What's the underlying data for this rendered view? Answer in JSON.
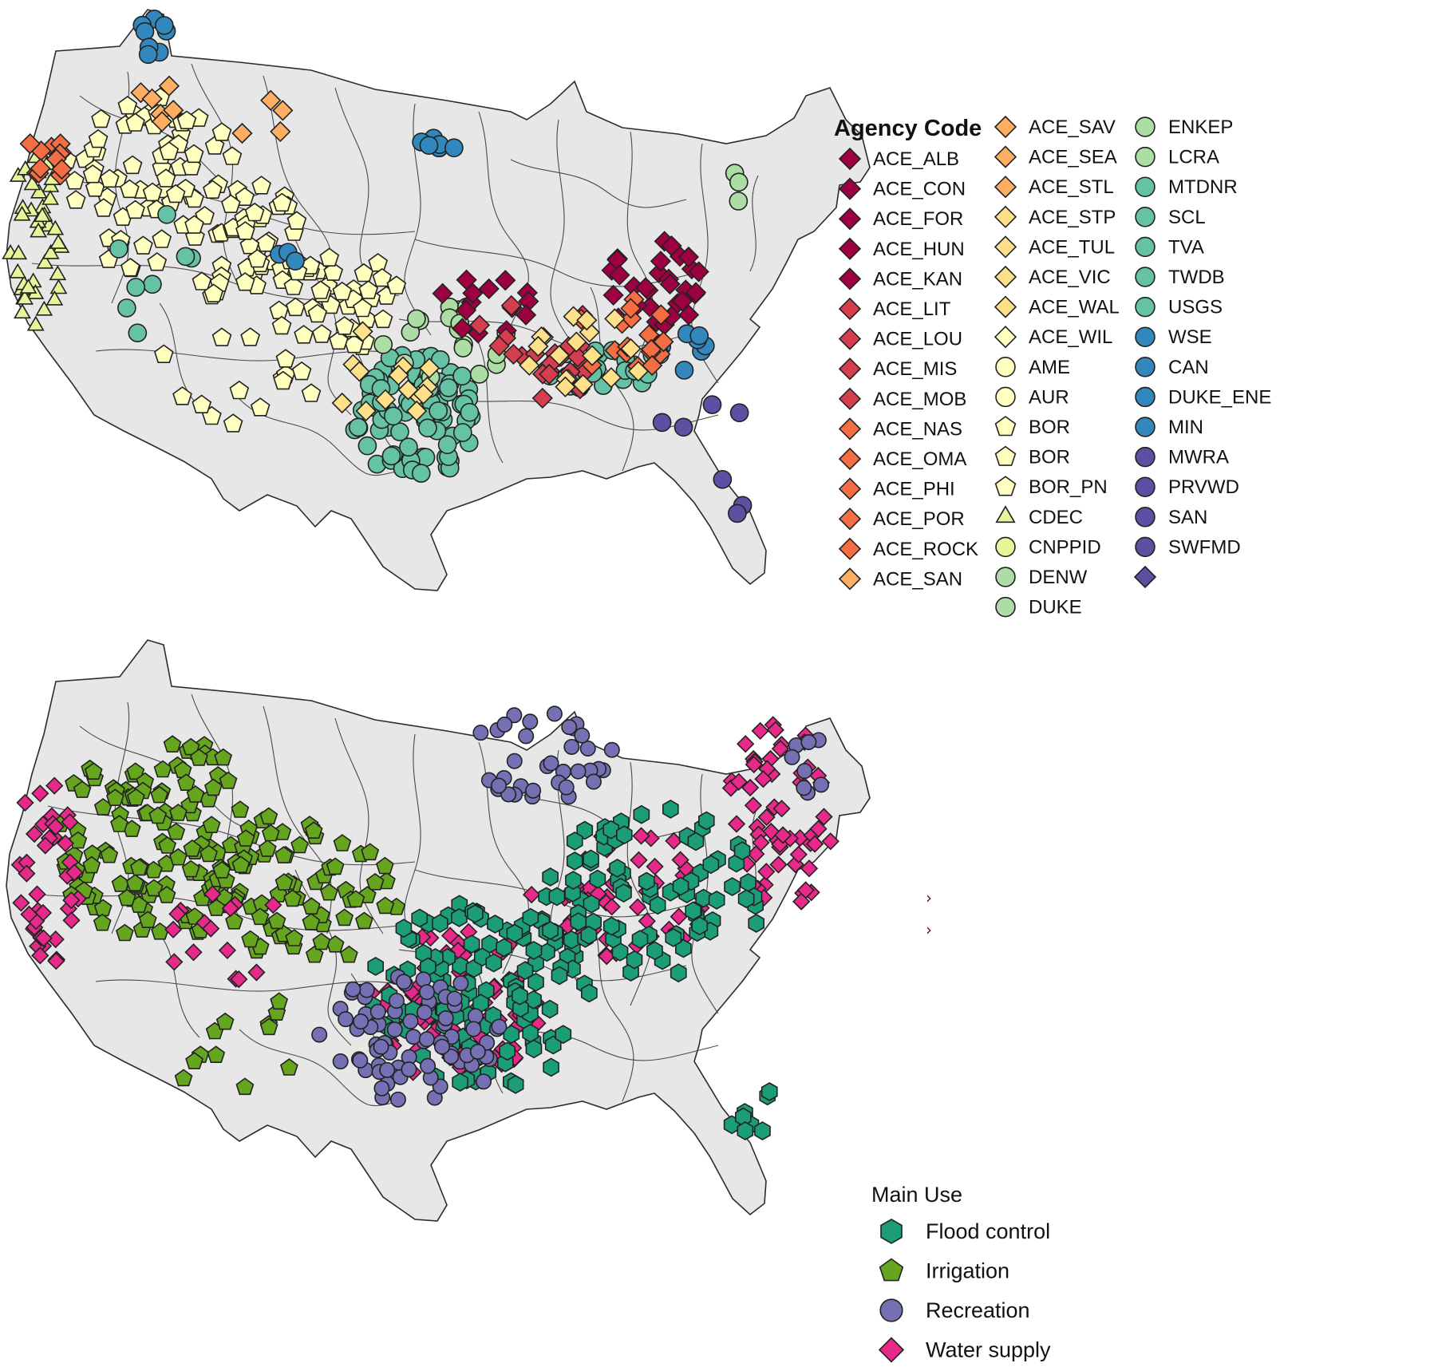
{
  "agency_legend": {
    "title": "Agency Code",
    "columns": [
      [
        {
          "label": "ACE_ALB",
          "shape": "diamond",
          "color": "#9e0142"
        },
        {
          "label": "ACE_CON",
          "shape": "diamond",
          "color": "#9e0142"
        },
        {
          "label": "ACE_FOR",
          "shape": "diamond",
          "color": "#9e0142"
        },
        {
          "label": "ACE_HUN",
          "shape": "diamond",
          "color": "#9e0142"
        },
        {
          "label": "ACE_KAN",
          "shape": "diamond",
          "color": "#9e0142"
        },
        {
          "label": "ACE_LIT",
          "shape": "diamond",
          "color": "#d53e4f"
        },
        {
          "label": "ACE_LOU",
          "shape": "diamond",
          "color": "#d53e4f"
        },
        {
          "label": "ACE_MIS",
          "shape": "diamond",
          "color": "#d53e4f"
        },
        {
          "label": "ACE_MOB",
          "shape": "diamond",
          "color": "#d53e4f"
        },
        {
          "label": "ACE_NAS",
          "shape": "diamond",
          "color": "#f46d43"
        },
        {
          "label": "ACE_OMA",
          "shape": "diamond",
          "color": "#f46d43"
        },
        {
          "label": "ACE_PHI",
          "shape": "diamond",
          "color": "#f46d43"
        },
        {
          "label": "ACE_POR",
          "shape": "diamond",
          "color": "#f46d43"
        },
        {
          "label": "ACE_ROCK",
          "shape": "diamond",
          "color": "#f46d43"
        },
        {
          "label": "ACE_SAN",
          "shape": "diamond",
          "color": "#fdae61"
        }
      ],
      [
        {
          "label": "ACE_SAV",
          "shape": "diamond",
          "color": "#fdae61"
        },
        {
          "label": "ACE_SEA",
          "shape": "diamond",
          "color": "#fdae61"
        },
        {
          "label": "ACE_STL",
          "shape": "diamond",
          "color": "#fdae61"
        },
        {
          "label": "ACE_STP",
          "shape": "diamond",
          "color": "#fee08b"
        },
        {
          "label": "ACE_TUL",
          "shape": "diamond",
          "color": "#fee08b"
        },
        {
          "label": "ACE_VIC",
          "shape": "diamond",
          "color": "#fee08b"
        },
        {
          "label": "ACE_WAL",
          "shape": "diamond",
          "color": "#fee08b"
        },
        {
          "label": "ACE_WIL",
          "shape": "diamond",
          "color": "#ffffbf"
        },
        {
          "label": "AME",
          "shape": "circle",
          "color": "#ffffbf"
        },
        {
          "label": "AUR",
          "shape": "circle",
          "color": "#ffffbf"
        },
        {
          "label": "BOR",
          "shape": "pentagon",
          "color": "#ffffbf"
        },
        {
          "label": "BOR",
          "shape": "pentagon",
          "color": "#ffffbf"
        },
        {
          "label": "BOR_PN",
          "shape": "pentagon",
          "color": "#ffffbf"
        },
        {
          "label": "CDEC",
          "shape": "triangle",
          "color": "#e6f598"
        },
        {
          "label": "CNPPID",
          "shape": "circle",
          "color": "#e6f598"
        },
        {
          "label": "DENW",
          "shape": "circle",
          "color": "#abdda4"
        },
        {
          "label": "DUKE",
          "shape": "circle",
          "color": "#abdda4"
        }
      ],
      [
        {
          "label": "ENKEP",
          "shape": "circle",
          "color": "#abdda4"
        },
        {
          "label": "LCRA",
          "shape": "circle",
          "color": "#abdda4"
        },
        {
          "label": "MTDNR",
          "shape": "circle",
          "color": "#66c2a5"
        },
        {
          "label": "SCL",
          "shape": "circle",
          "color": "#66c2a5"
        },
        {
          "label": "TVA",
          "shape": "circle",
          "color": "#66c2a5"
        },
        {
          "label": "TWDB",
          "shape": "circle",
          "color": "#66c2a5"
        },
        {
          "label": "USGS",
          "shape": "circle",
          "color": "#66c2a5"
        },
        {
          "label": "WSE",
          "shape": "circle",
          "color": "#3288bd"
        },
        {
          "label": "CAN",
          "shape": "circle",
          "color": "#3288bd"
        },
        {
          "label": "DUKE_ENE",
          "shape": "circle",
          "color": "#3288bd"
        },
        {
          "label": "MIN",
          "shape": "circle",
          "color": "#3288bd"
        },
        {
          "label": "MWRA",
          "shape": "circle",
          "color": "#5e4fa2"
        },
        {
          "label": "PRVWD",
          "shape": "circle",
          "color": "#5e4fa2"
        },
        {
          "label": "SAN",
          "shape": "circle",
          "color": "#5e4fa2"
        },
        {
          "label": "SWFMD",
          "shape": "circle",
          "color": "#5e4fa2"
        },
        {
          "label": "",
          "shape": "diamond",
          "color": "#5e4fa2"
        }
      ]
    ]
  },
  "use_legend": {
    "title": "Main Use",
    "items": [
      {
        "label": "Flood control",
        "shape": "hexagon",
        "color": "#1b9e77"
      },
      {
        "label": "Irrigation",
        "shape": "pentagon",
        "color": "#66a61e"
      },
      {
        "label": "Recreation",
        "shape": "circle",
        "color": "#7570b3"
      },
      {
        "label": "Water supply",
        "shape": "diamond",
        "color": "#e7298a"
      }
    ]
  },
  "side_glyphs": [
    "›",
    "›"
  ]
}
